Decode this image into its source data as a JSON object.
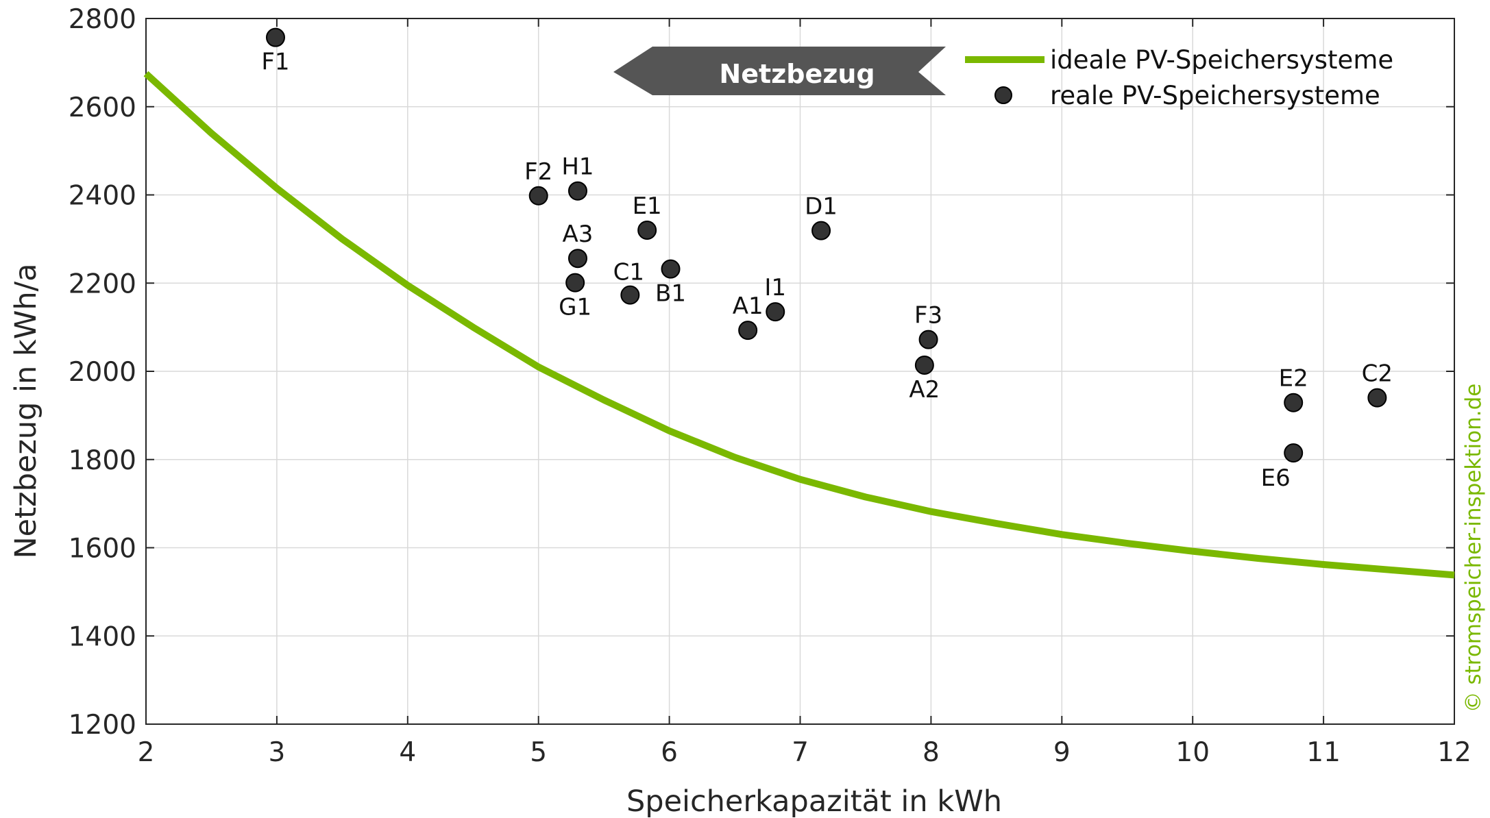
{
  "chart_data": {
    "type": "scatter",
    "xlabel": "Speicherkapazität in kWh",
    "ylabel": "Netzbezug in kWh/a",
    "xlim": [
      2,
      12
    ],
    "ylim": [
      1200,
      2800
    ],
    "xticks": [
      "2",
      "3",
      "4",
      "5",
      "6",
      "7",
      "8",
      "9",
      "10",
      "11",
      "12"
    ],
    "yticks": [
      "1200",
      "1400",
      "1600",
      "1800",
      "2000",
      "2200",
      "2400",
      "2600",
      "2800"
    ],
    "grid": true,
    "legend_position": "top-right",
    "series": [
      {
        "name": "ideale PV-Speichersysteme",
        "kind": "line",
        "color": "#7ab800",
        "x": [
          2,
          2.5,
          3,
          3.5,
          4,
          4.5,
          5,
          5.5,
          6,
          6.5,
          7,
          7.5,
          8,
          8.5,
          9,
          9.5,
          10,
          10.5,
          11,
          11.5,
          12
        ],
        "y": [
          2675,
          2540,
          2415,
          2300,
          2195,
          2100,
          2010,
          1935,
          1865,
          1805,
          1755,
          1715,
          1682,
          1655,
          1630,
          1610,
          1592,
          1576,
          1562,
          1550,
          1538
        ]
      },
      {
        "name": "reale PV-Speichersysteme",
        "kind": "scatter",
        "color": "#333333",
        "points": [
          {
            "label": "F1",
            "x": 2.99,
            "y": 2757,
            "label_pos": "below"
          },
          {
            "label": "F2",
            "x": 5.0,
            "y": 2398,
            "label_pos": "above"
          },
          {
            "label": "H1",
            "x": 5.3,
            "y": 2409,
            "label_pos": "above"
          },
          {
            "label": "E1",
            "x": 5.83,
            "y": 2320,
            "label_pos": "above"
          },
          {
            "label": "D1",
            "x": 7.16,
            "y": 2319,
            "label_pos": "above"
          },
          {
            "label": "A3",
            "x": 5.3,
            "y": 2256,
            "label_pos": "above"
          },
          {
            "label": "G1",
            "x": 5.28,
            "y": 2201,
            "label_pos": "below"
          },
          {
            "label": "C1",
            "x": 5.7,
            "y": 2173,
            "label_pos": "above-left"
          },
          {
            "label": "B1",
            "x": 6.01,
            "y": 2232,
            "label_pos": "below"
          },
          {
            "label": "A1",
            "x": 6.6,
            "y": 2093,
            "label_pos": "above"
          },
          {
            "label": "I1",
            "x": 6.81,
            "y": 2135,
            "label_pos": "above"
          },
          {
            "label": "F3",
            "x": 7.98,
            "y": 2072,
            "label_pos": "above"
          },
          {
            "label": "A2",
            "x": 7.95,
            "y": 2014,
            "label_pos": "below"
          },
          {
            "label": "E2",
            "x": 10.77,
            "y": 1929,
            "label_pos": "above"
          },
          {
            "label": "C2",
            "x": 11.41,
            "y": 1940,
            "label_pos": "above"
          },
          {
            "label": "E6",
            "x": 10.77,
            "y": 1815,
            "label_pos": "below-left"
          }
        ]
      }
    ],
    "annotation": {
      "text": "Netzbezug",
      "direction": "left"
    },
    "credit": "© stromspeicher-inspektion.de",
    "credit_color": "#7ab800"
  }
}
